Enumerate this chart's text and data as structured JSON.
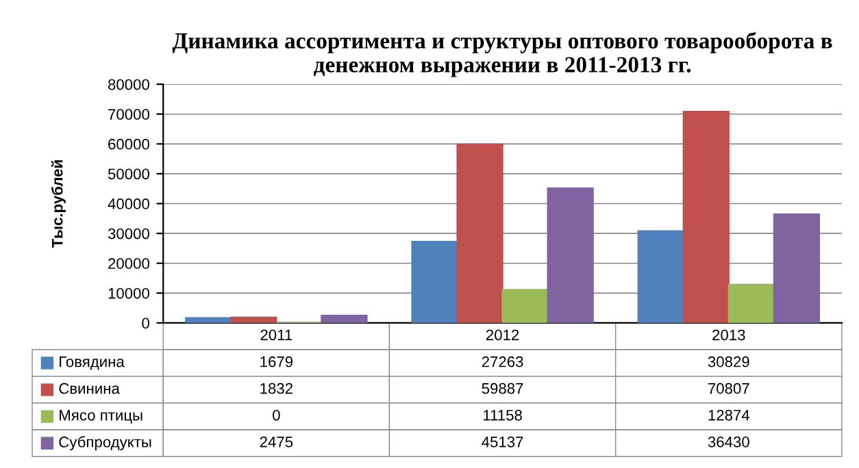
{
  "chart_data": {
    "type": "bar",
    "title": "Динамика ассортимента и структуры оптового товарооборота в денежном выражении в 2011-2013 гг.",
    "ylabel": "Тыс.рублей",
    "categories": [
      "2011",
      "2012",
      "2013"
    ],
    "series": [
      {
        "name": "Говядина",
        "color": "#4f81bd",
        "values": [
          1679,
          27263,
          30829
        ]
      },
      {
        "name": "Свинина",
        "color": "#c0504d",
        "values": [
          1832,
          59887,
          70807
        ]
      },
      {
        "name": "Мясо птицы",
        "color": "#9bbb59",
        "values": [
          0,
          11158,
          12874
        ]
      },
      {
        "name": "Субпродукты",
        "color": "#8064a2",
        "values": [
          2475,
          45137,
          36430
        ]
      }
    ],
    "ylim": [
      0,
      80000
    ],
    "yticks": [
      0,
      10000,
      20000,
      30000,
      40000,
      50000,
      60000,
      70000,
      80000
    ],
    "grid": "y",
    "data_labels": true,
    "legend": "bottom left"
  }
}
